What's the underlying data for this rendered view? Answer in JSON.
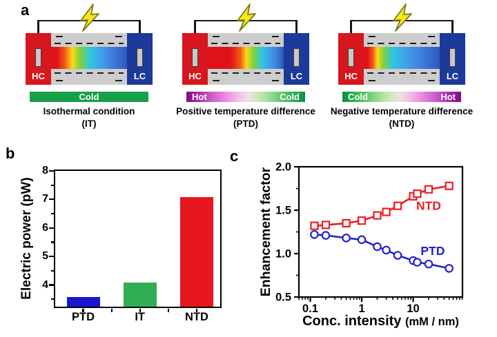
{
  "figure_background": "#ffffff",
  "panel_a": {
    "label": "a",
    "devices": [
      {
        "left_terminal": "HC",
        "right_terminal": "LC",
        "bar": {
          "center": "Cold"
        },
        "bar_style": "isothermal-green",
        "caption": "Isothermal condition",
        "abbr": "(IT)"
      },
      {
        "left_terminal": "HC",
        "right_terminal": "LC",
        "bar": {
          "left": "Hot",
          "right": "Cold"
        },
        "bar_style": "hot-to-cold-gradient",
        "caption": "Positive temperature difference",
        "abbr": "(PTD)"
      },
      {
        "left_terminal": "HC",
        "right_terminal": "LC",
        "bar": {
          "left": "Cold",
          "right": "Hot"
        },
        "bar_style": "cold-to-hot-gradient",
        "caption": "Negative temperature difference",
        "abbr": "(NTD)"
      }
    ],
    "icons": {
      "bolt": "lightning-bolt",
      "bolt_color": "#f6e71f"
    }
  },
  "panel_b": {
    "label": "b"
  },
  "panel_c": {
    "label": "c"
  },
  "chart_data": [
    {
      "type": "bar",
      "categories": [
        "PTD",
        "IT",
        "NTD"
      ],
      "values": [
        3.6,
        4.1,
        7.1
      ],
      "bar_colors": [
        "#1b15cf",
        "#2fae53",
        "#e8161d"
      ],
      "title": "",
      "xlabel": "",
      "ylabel": "Electric power (pW)",
      "ylim": [
        3.25,
        8
      ],
      "yticks": [
        4,
        5,
        6,
        7,
        8
      ],
      "ytick_labels": [
        "4",
        "5",
        "6",
        "7",
        "8"
      ],
      "yticks_minor": [
        3.5,
        4.5,
        5.5,
        6.5,
        7.5
      ],
      "grid": false,
      "legend": "none"
    },
    {
      "type": "line",
      "x": [
        0.12,
        0.2,
        0.5,
        1,
        2,
        3,
        5,
        10,
        12,
        20,
        50
      ],
      "series": [
        {
          "name": "NTD",
          "color": "#ed1c24",
          "marker": "square",
          "values": [
            1.32,
            1.33,
            1.35,
            1.38,
            1.44,
            1.48,
            1.55,
            1.66,
            1.69,
            1.74,
            1.78
          ],
          "label_pos": [
            20,
            1.55
          ]
        },
        {
          "name": "PTD",
          "color": "#2020cf",
          "marker": "circle",
          "values": [
            1.22,
            1.21,
            1.18,
            1.16,
            1.08,
            1.04,
            0.98,
            0.92,
            0.9,
            0.88,
            0.83
          ],
          "label_pos": [
            24,
            1.03
          ]
        }
      ],
      "title": "",
      "xlabel": "Conc. intensity (mM / nm)",
      "xlabel_main": "Conc. intensity ",
      "xlabel_unit": "(mM / nm)",
      "ylabel": "Enhancement factor",
      "xscale": "log",
      "xlim": [
        0.06,
        91
      ],
      "ylim": [
        0.5,
        2.0
      ],
      "xticks": [
        0.1,
        1,
        10
      ],
      "xtick_labels": [
        "0.1",
        "1",
        "10"
      ],
      "yticks": [
        0.5,
        1.0,
        1.5,
        2.0
      ],
      "ytick_labels": [
        "0.5",
        "1.0",
        "1.5",
        "2.0"
      ],
      "yticks_minor": [
        0.75,
        1.25,
        1.75
      ],
      "grid": false,
      "legend": "inline-labels"
    }
  ]
}
